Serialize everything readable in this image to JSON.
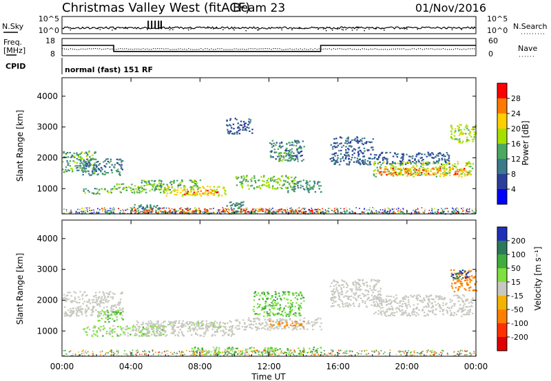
{
  "header": {
    "title": "Christmas Valley West (fitACF)",
    "beam": "Beam 23",
    "date": "01/Nov/2016"
  },
  "panels": {
    "nsky_label": "N.Sky",
    "nsky_ticks": [
      "10^5",
      "10^0"
    ],
    "nsearch_label": "N.Search",
    "freq_label_1": "Freq.",
    "freq_label_2": "[MHz]",
    "freq_ticks": [
      "18",
      "8"
    ],
    "nave_label": "Nave",
    "nave_ticks": [
      "60",
      "0"
    ],
    "cpid_label": "CPID",
    "cpid_value": "normal (fast) 151 RF"
  },
  "power_colorbar": {
    "title": "Power [dB]",
    "ticks": [
      "28",
      "24",
      "20",
      "16",
      "12",
      "8",
      "4"
    ],
    "colors": [
      "#ff0000",
      "#ff7a00",
      "#ffd000",
      "#a6e000",
      "#4aa860",
      "#3a7a8a",
      "#2c3e9c",
      "#0000ff"
    ]
  },
  "velocity_colorbar": {
    "title": "Velocity [m s⁻¹]",
    "ticks": [
      "200",
      "100",
      "50",
      "15",
      "-15",
      "-50",
      "-100",
      "-200"
    ],
    "colors": [
      "#1f2fb8",
      "#2a7a5a",
      "#3fae3f",
      "#7fe040",
      "#c8c8c0",
      "#f2b400",
      "#ff8000",
      "#ff3000",
      "#e00000"
    ]
  },
  "chart_data": {
    "type": "heatmap",
    "xlabel": "Time UT",
    "ylabel": "Slant Range [km]",
    "x_ticks": [
      "00:00",
      "04:00",
      "08:00",
      "12:00",
      "16:00",
      "20:00",
      "00:00"
    ],
    "x_range_hours": [
      0,
      24
    ],
    "y_ticks": [
      1000,
      2000,
      3000,
      4000
    ],
    "y_range_km": [
      180,
      4600
    ],
    "grid": false,
    "frequency_mhz": {
      "segments": [
        {
          "start_h": 0,
          "end_h": 3.0,
          "value": 14
        },
        {
          "start_h": 3.0,
          "end_h": 15.0,
          "value": 10.5
        },
        {
          "start_h": 15.0,
          "end_h": 24,
          "value": 14
        }
      ]
    },
    "power_regions": [
      {
        "t0": 0.0,
        "t1": 2.0,
        "r0": 1550,
        "r1": 2250,
        "db": 14
      },
      {
        "t0": 1.0,
        "t1": 3.5,
        "r0": 1450,
        "r1": 2000,
        "db": 10
      },
      {
        "t0": 1.2,
        "t1": 3.0,
        "r0": 850,
        "r1": 1050,
        "db": 14
      },
      {
        "t0": 3.0,
        "t1": 6.0,
        "r0": 880,
        "r1": 1180,
        "db": 16
      },
      {
        "t0": 4.5,
        "t1": 8.0,
        "r0": 980,
        "r1": 1300,
        "db": 14
      },
      {
        "t0": 6.0,
        "t1": 9.5,
        "r0": 780,
        "r1": 1100,
        "db": 20
      },
      {
        "t0": 7.0,
        "t1": 9.0,
        "r0": 820,
        "r1": 980,
        "db": 26
      },
      {
        "t0": 4.0,
        "t1": 6.0,
        "r0": 250,
        "r1": 500,
        "db": 12
      },
      {
        "t0": 4.0,
        "t1": 15.0,
        "r0": 230,
        "r1": 360,
        "db": 28
      },
      {
        "t0": 0.0,
        "t1": 24.0,
        "r0": 200,
        "r1": 290,
        "db": 12
      },
      {
        "t0": 10.0,
        "t1": 13.5,
        "r0": 1000,
        "r1": 1450,
        "db": 16
      },
      {
        "t0": 12.0,
        "t1": 14.0,
        "r0": 1900,
        "r1": 2600,
        "db": 10
      },
      {
        "t0": 13.0,
        "t1": 15.0,
        "r0": 900,
        "r1": 1300,
        "db": 12
      },
      {
        "t0": 9.5,
        "t1": 10.5,
        "r0": 350,
        "r1": 600,
        "db": 12
      },
      {
        "t0": 15.5,
        "t1": 18.0,
        "r0": 1800,
        "r1": 2700,
        "db": 8
      },
      {
        "t0": 18.0,
        "t1": 22.5,
        "r0": 1800,
        "r1": 2200,
        "db": 8
      },
      {
        "t0": 18.0,
        "t1": 23.8,
        "r0": 1400,
        "r1": 1900,
        "db": 18
      },
      {
        "t0": 18.3,
        "t1": 23.5,
        "r0": 1450,
        "r1": 1680,
        "db": 26
      },
      {
        "t0": 22.5,
        "t1": 24.0,
        "r0": 2500,
        "r1": 3100,
        "db": 18
      },
      {
        "t0": 9.5,
        "t1": 11.0,
        "r0": 2800,
        "r1": 3300,
        "db": 8
      },
      {
        "t0": 12.5,
        "t1": 13.3,
        "r0": 1900,
        "r1": 2200,
        "db": 14
      }
    ],
    "velocity_regions": [
      {
        "t0": 0.0,
        "t1": 3.5,
        "r0": 1500,
        "r1": 2300,
        "v": 0
      },
      {
        "t0": 2.0,
        "t1": 3.5,
        "r0": 1300,
        "r1": 1700,
        "v": 30
      },
      {
        "t0": 1.2,
        "t1": 6.0,
        "r0": 850,
        "r1": 1200,
        "v": 20
      },
      {
        "t0": 4.0,
        "t1": 10.0,
        "r0": 850,
        "r1": 1350,
        "v": 0
      },
      {
        "t0": 5.0,
        "t1": 9.5,
        "r0": 1100,
        "r1": 1300,
        "v": 10
      },
      {
        "t0": 7.5,
        "t1": 15.0,
        "r0": 250,
        "r1": 500,
        "v": 25
      },
      {
        "t0": 10.0,
        "t1": 15.0,
        "r0": 1050,
        "r1": 1450,
        "v": 0
      },
      {
        "t0": 12.0,
        "t1": 14.0,
        "r0": 1150,
        "r1": 1350,
        "v": -60
      },
      {
        "t0": 11.0,
        "t1": 14.0,
        "r0": 1500,
        "r1": 2300,
        "v": 30
      },
      {
        "t0": 15.5,
        "t1": 18.5,
        "r0": 1800,
        "r1": 2700,
        "v": 0
      },
      {
        "t0": 18.0,
        "t1": 23.8,
        "r0": 1500,
        "r1": 2200,
        "v": 0
      },
      {
        "t0": 22.5,
        "t1": 24.0,
        "r0": 2300,
        "r1": 3000,
        "v": -80
      },
      {
        "t0": 22.5,
        "t1": 23.5,
        "r0": 2700,
        "r1": 3000,
        "v": 150
      }
    ]
  }
}
